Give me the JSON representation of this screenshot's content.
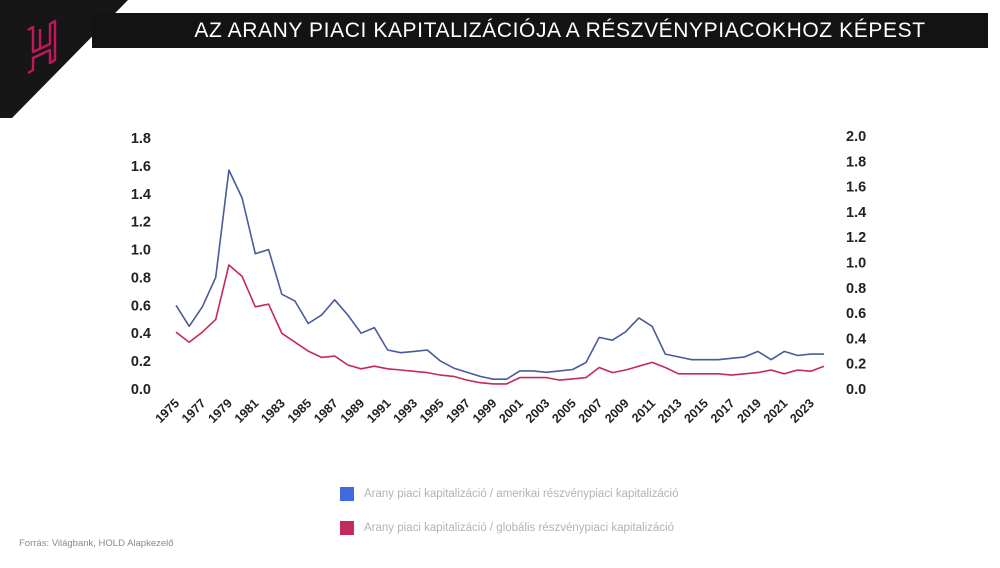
{
  "title": "AZ ARANY PIACI KAPITALIZÁCIÓJA A RÉSZVÉNYPIACOKHOZ KÉPEST",
  "logo": {
    "letter": "H",
    "color": "#c2185b",
    "background": "#161616",
    "icon": "hold-h-logo-icon"
  },
  "source": "Forrás: Világbank, HOLD Alapkezelő",
  "chart_data": {
    "type": "line",
    "title": "AZ ARANY PIACI KAPITALIZÁCIÓJA A RÉSZVÉNYPIACOKHOZ KÉPEST",
    "x": [
      1975,
      1976,
      1977,
      1978,
      1979,
      1980,
      1981,
      1982,
      1983,
      1984,
      1985,
      1986,
      1987,
      1988,
      1989,
      1990,
      1991,
      1992,
      1993,
      1994,
      1995,
      1996,
      1997,
      1998,
      1999,
      2000,
      2001,
      2002,
      2003,
      2004,
      2005,
      2006,
      2007,
      2008,
      2009,
      2010,
      2011,
      2012,
      2013,
      2014,
      2015,
      2016,
      2017,
      2018,
      2019,
      2020,
      2021,
      2022,
      2023,
      2024
    ],
    "x_tick_labels": [
      "1975",
      "1977",
      "1979",
      "1981",
      "1983",
      "1985",
      "1987",
      "1989",
      "1991",
      "1993",
      "1995",
      "1997",
      "1999",
      "2001",
      "2003",
      "2005",
      "2007",
      "2009",
      "2011",
      "2013",
      "2015",
      "2017",
      "2019",
      "2021",
      "2023"
    ],
    "y_left": {
      "ticks": [
        "0.0",
        "0.2",
        "0.4",
        "0.6",
        "0.8",
        "1.0",
        "1.2",
        "1.4",
        "1.6",
        "1.8"
      ],
      "range": [
        0,
        1.8
      ]
    },
    "y_right": {
      "ticks": [
        "0.0",
        "0.2",
        "0.4",
        "0.6",
        "0.8",
        "1.0",
        "1.2",
        "1.4",
        "1.6",
        "1.8",
        "2.0"
      ],
      "range": [
        0,
        2.0
      ]
    },
    "series": [
      {
        "name": "Arany piaci kapitalizáció / amerikai részvénypiaci kapitalizáció",
        "axis": "left",
        "color": "#4a5a9a",
        "legend_color": "#4169e1",
        "values": [
          0.6,
          0.45,
          0.59,
          0.8,
          1.57,
          1.37,
          0.97,
          1.0,
          0.68,
          0.63,
          0.47,
          0.53,
          0.64,
          0.53,
          0.4,
          0.44,
          0.28,
          0.26,
          0.27,
          0.28,
          0.2,
          0.15,
          0.12,
          0.09,
          0.07,
          0.07,
          0.13,
          0.13,
          0.12,
          0.13,
          0.14,
          0.19,
          0.37,
          0.35,
          0.41,
          0.51,
          0.45,
          0.25,
          0.23,
          0.21,
          0.21,
          0.21,
          0.22,
          0.23,
          0.27,
          0.21,
          0.27,
          0.24,
          0.25,
          0.25
        ]
      },
      {
        "name": "Arany piaci kapitalizáció / globális részvénypiaci kapitalizáció",
        "axis": "right",
        "color": "#c42a5a",
        "legend_color": "#c42a5a",
        "values": [
          0.45,
          0.37,
          0.45,
          0.55,
          0.98,
          0.89,
          0.65,
          0.67,
          0.44,
          0.37,
          0.3,
          0.25,
          0.26,
          0.19,
          0.16,
          0.18,
          0.16,
          0.15,
          0.14,
          0.13,
          0.11,
          0.1,
          0.07,
          0.05,
          0.04,
          0.04,
          0.09,
          0.09,
          0.09,
          0.07,
          0.08,
          0.09,
          0.17,
          0.13,
          0.15,
          0.18,
          0.21,
          0.17,
          0.12,
          0.12,
          0.12,
          0.12,
          0.11,
          0.12,
          0.13,
          0.15,
          0.12,
          0.15,
          0.14,
          0.18
        ]
      }
    ],
    "legend_position": "bottom",
    "grid": false
  }
}
